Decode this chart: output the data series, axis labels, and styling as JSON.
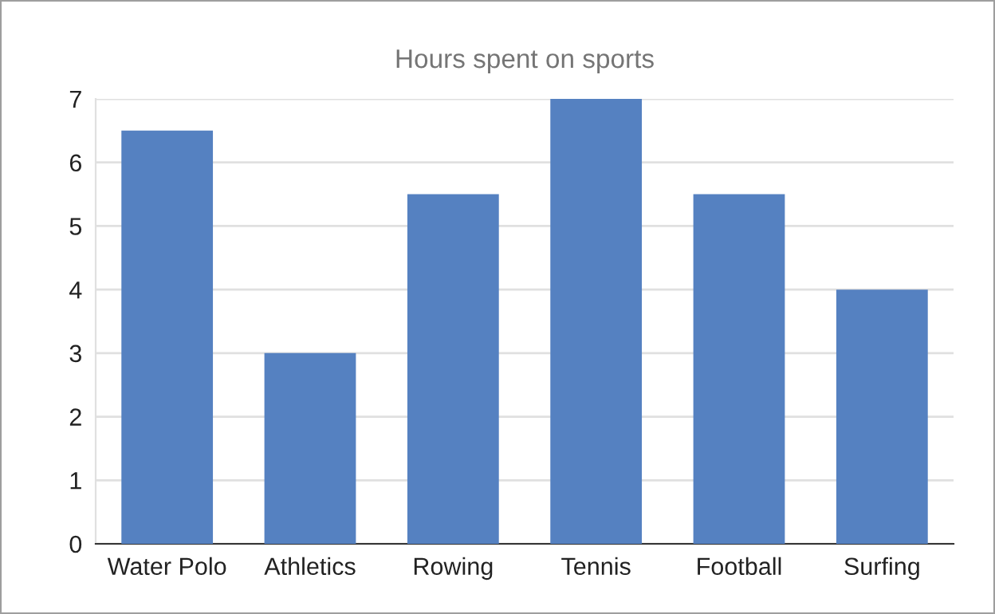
{
  "chart_data": {
    "type": "bar",
    "title": "Hours spent on sports",
    "categories": [
      "Water Polo",
      "Athletics",
      "Rowing",
      "Tennis",
      "Football",
      "Surfing"
    ],
    "values": [
      6.5,
      3,
      5.5,
      7,
      5.5,
      4
    ],
    "color": "#5581c1",
    "ylim": [
      0,
      7
    ],
    "yticks": [
      0,
      1,
      2,
      3,
      4,
      5,
      6,
      7
    ],
    "grid": "y"
  }
}
